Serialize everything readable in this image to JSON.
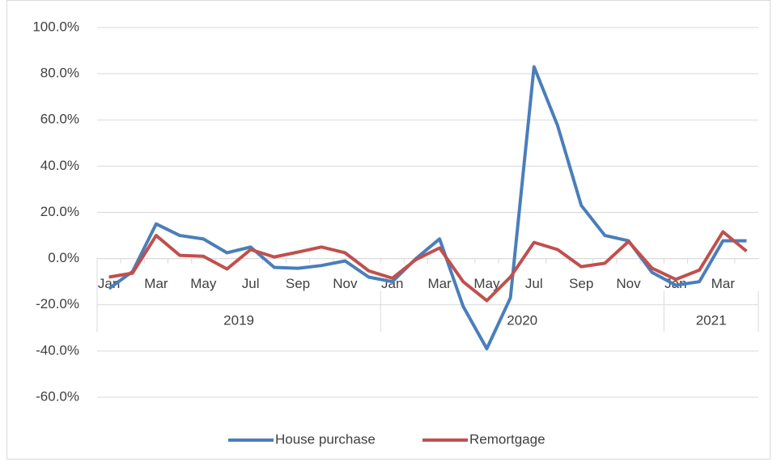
{
  "chart_data": {
    "type": "line",
    "categories": [
      "Jan",
      null,
      "Mar",
      null,
      "May",
      null,
      "Jul",
      null,
      "Sep",
      null,
      "Nov",
      null,
      "Jan",
      null,
      "Mar",
      null,
      "May",
      null,
      "Jul",
      null,
      "Sep",
      null,
      "Nov",
      null,
      "Jan",
      null,
      "Mar",
      null
    ],
    "groups": [
      {
        "name": "2019",
        "count": 12
      },
      {
        "name": "2020",
        "count": 12
      },
      {
        "name": "2021",
        "count": 4
      }
    ],
    "series": [
      {
        "name": "House purchase",
        "color": "#4a7ebb",
        "values": [
          -13,
          -5.6,
          15,
          10,
          8.5,
          2.5,
          5,
          -3.8,
          -4.2,
          -3,
          -1,
          -8,
          -10,
          0,
          8.5,
          -20.7,
          -39,
          -17,
          83,
          57.5,
          23,
          10,
          7.7,
          -6,
          -11.5,
          -10,
          7.7,
          7.7
        ]
      },
      {
        "name": "Remortgage",
        "color": "#c0504d",
        "values": [
          -8,
          -6.3,
          10,
          1.4,
          1,
          -4.5,
          3.9,
          0.7,
          2.8,
          5,
          2.5,
          -5.3,
          -8.5,
          -0.4,
          4.6,
          -10,
          -18.2,
          -8,
          7,
          3.9,
          -3.5,
          -2,
          7.4,
          -4.2,
          -9,
          -5,
          11.6,
          3.2
        ]
      }
    ],
    "ylim": [
      -60,
      100
    ],
    "yticks": [
      {
        "value": -60,
        "label": "-60.0%"
      },
      {
        "value": -40,
        "label": "-40.0%"
      },
      {
        "value": -20,
        "label": "-20.0%"
      },
      {
        "value": 0,
        "label": "0.0%"
      },
      {
        "value": 20,
        "label": "20.0%"
      },
      {
        "value": 40,
        "label": "40.0%"
      },
      {
        "value": 60,
        "label": "60.0%"
      },
      {
        "value": 80,
        "label": "80.0%"
      },
      {
        "value": 100,
        "label": "100.0%"
      }
    ],
    "grid": true,
    "legend": "bottom"
  }
}
